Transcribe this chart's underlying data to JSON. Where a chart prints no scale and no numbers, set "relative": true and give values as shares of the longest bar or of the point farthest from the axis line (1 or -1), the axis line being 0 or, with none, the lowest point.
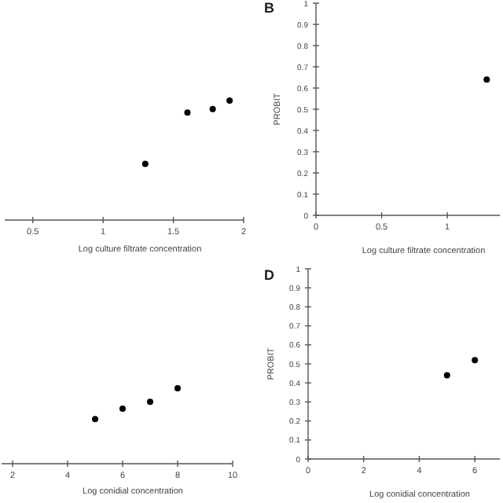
{
  "chart_data": [
    {
      "type": "scatter",
      "relative": true,
      "xlabel": "Log culture filtrate concentration",
      "x": [
        1.3,
        1.6,
        1.78,
        1.9
      ],
      "values": [
        0.47,
        0.9,
        0.93,
        1
      ],
      "color": "#000000",
      "xlim": [
        0.3,
        2
      ],
      "xticks": [
        0.5,
        1,
        1.5,
        2
      ],
      "marker": "circle"
    },
    {
      "type": "scatter",
      "title": "B",
      "xlabel": "Log culture filtrate concentration",
      "ylabel": "PROBIT",
      "x": [
        1.3
      ],
      "values": [
        0.64
      ],
      "color": "#000000",
      "xlim": [
        0,
        1.4
      ],
      "xticks": [
        0,
        0.5,
        1
      ],
      "ylim": [
        0,
        1
      ],
      "yticks": [
        0,
        0.1,
        0.2,
        0.3,
        0.4,
        0.5,
        0.6,
        0.7,
        0.8,
        0.9,
        1
      ],
      "marker": "circle"
    },
    {
      "type": "scatter",
      "relative": true,
      "xlabel": "Log conidial concentration",
      "x": [
        5,
        6,
        7,
        8
      ],
      "values": [
        0.59,
        0.73,
        0.82,
        1
      ],
      "color": "#000000",
      "xlim": [
        1.6,
        10
      ],
      "xticks": [
        2,
        4,
        6,
        8,
        10
      ],
      "marker": "circle"
    },
    {
      "type": "scatter",
      "title": "D",
      "xlabel": "Log conidial concentration",
      "ylabel": "PROBIT",
      "x": [
        5,
        6
      ],
      "values": [
        0.44,
        0.52
      ],
      "color": "#000000",
      "xlim": [
        0,
        6.9
      ],
      "xticks": [
        0,
        2,
        4,
        6
      ],
      "ylim": [
        0,
        1
      ],
      "yticks": [
        0,
        0.1,
        0.2,
        0.3,
        0.4,
        0.5,
        0.6,
        0.7,
        0.8,
        0.9,
        1
      ],
      "marker": "circle"
    }
  ]
}
